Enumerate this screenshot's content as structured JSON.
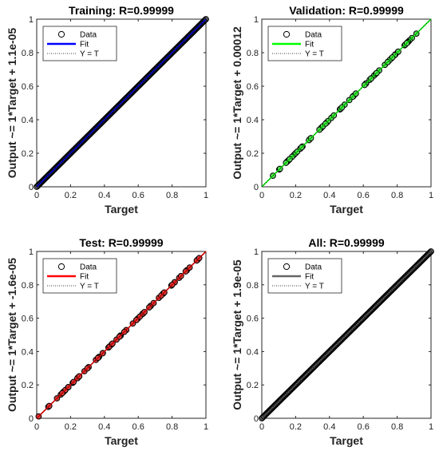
{
  "chart_data": [
    {
      "type": "scatter",
      "title": "Training: R=0.99999",
      "xlabel": "Target",
      "ylabel": "Output ~= 1*Target + 1.1e-05",
      "xlim": [
        0,
        1
      ],
      "ylim": [
        0,
        1
      ],
      "xticks": [
        "0",
        "0.2",
        "0.4",
        "0.6",
        "0.8",
        "1"
      ],
      "yticks": [
        "0",
        "0.2",
        "0.4",
        "0.6",
        "0.8",
        "1"
      ],
      "legend": [
        "Data",
        "Fit",
        "Y = T"
      ],
      "legend_position": "top-left",
      "fit_color": "#0000ff",
      "marker_fill": "none",
      "fit": {
        "slope": 1,
        "intercept": 1.1e-05
      },
      "points": {
        "distribution": "dense",
        "range": [
          0,
          1
        ],
        "count": 200
      }
    },
    {
      "type": "scatter",
      "title": "Validation: R=0.99999",
      "xlabel": "Target",
      "ylabel": "Output ~= 1*Target + 0.00012",
      "xlim": [
        0,
        1
      ],
      "ylim": [
        0,
        1
      ],
      "xticks": [
        "0",
        "0.2",
        "0.4",
        "0.6",
        "0.8",
        "1"
      ],
      "yticks": [
        "0",
        "0.2",
        "0.4",
        "0.6",
        "0.8",
        "1"
      ],
      "legend": [
        "Data",
        "Fit",
        "Y = T"
      ],
      "legend_position": "top-left",
      "fit_color": "#00ff00",
      "marker_fill": "#5fd35f",
      "fit": {
        "slope": 1,
        "intercept": 0.00012
      },
      "points": {
        "distribution": "sparse",
        "range": [
          0,
          1
        ],
        "count": 70
      }
    },
    {
      "type": "scatter",
      "title": "Test: R=0.99999",
      "xlabel": "Target",
      "ylabel": "Output ~= 1*Target + -1.6e-05",
      "xlim": [
        0,
        1
      ],
      "ylim": [
        0,
        1
      ],
      "xticks": [
        "0",
        "0.2",
        "0.4",
        "0.6",
        "0.8",
        "1"
      ],
      "yticks": [
        "0",
        "0.2",
        "0.4",
        "0.6",
        "0.8",
        "1"
      ],
      "legend": [
        "Data",
        "Fit",
        "Y = T"
      ],
      "legend_position": "top-left",
      "fit_color": "#ff0000",
      "marker_fill": "#d04040",
      "fit": {
        "slope": 1,
        "intercept": -1.6e-05
      },
      "points": {
        "distribution": "sparse",
        "range": [
          0,
          1
        ],
        "count": 70
      }
    },
    {
      "type": "scatter",
      "title": "All: R=0.99999",
      "xlabel": "Target",
      "ylabel": "Output ~= 1*Target + 1.9e-05",
      "xlim": [
        0,
        1
      ],
      "ylim": [
        0,
        1
      ],
      "xticks": [
        "0",
        "0.2",
        "0.4",
        "0.6",
        "0.8",
        "1"
      ],
      "yticks": [
        "0",
        "0.2",
        "0.4",
        "0.6",
        "0.8",
        "1"
      ],
      "legend": [
        "Data",
        "Fit",
        "Y = T"
      ],
      "legend_position": "top-left",
      "fit_color": "#666666",
      "marker_fill": "none",
      "fit": {
        "slope": 1,
        "intercept": 1.9e-05
      },
      "points": {
        "distribution": "dense",
        "range": [
          0,
          1
        ],
        "count": 200
      }
    }
  ]
}
